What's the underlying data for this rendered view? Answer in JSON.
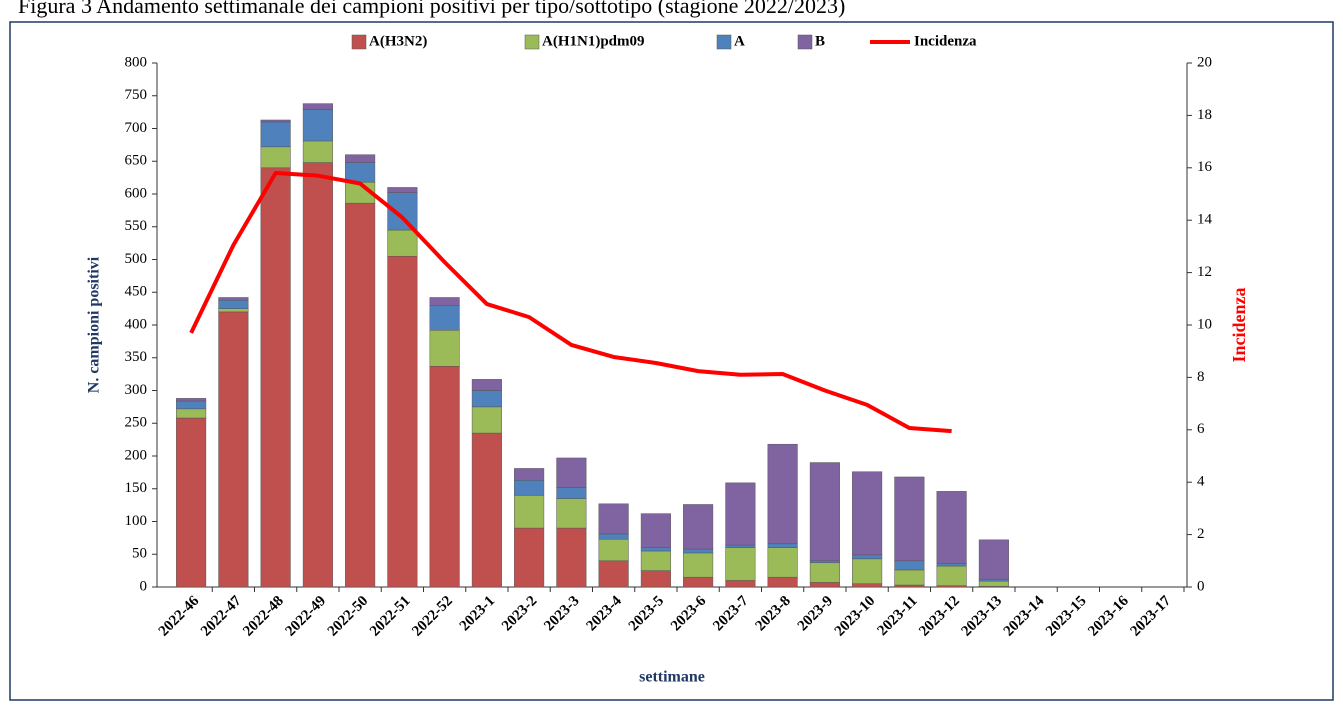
{
  "chart_data": {
    "type": "bar",
    "title": "Figura 3 Andamento settimanale dei campioni positivi per tipo/sottotipo (stagione 2022/2023)",
    "x_label": "settimane",
    "y_label": "N. campioni positivi",
    "y2_label": "Incidenza",
    "stacked": true,
    "legend": "top",
    "categories": [
      "2022-46",
      "2022-47",
      "2022-48",
      "2022-49",
      "2022-50",
      "2022-51",
      "2022-52",
      "2023-1",
      "2023-2",
      "2023-3",
      "2023-4",
      "2023-5",
      "2023-6",
      "2023-7",
      "2023-8",
      "2023-9",
      "2023-10",
      "2023-11",
      "2023-12",
      "2023-13",
      "2023-14",
      "2023-15",
      "2023-16",
      "2023-17"
    ],
    "series": [
      {
        "name": "A(H3N2)",
        "color": "#c0504d",
        "values": [
          258,
          420,
          640,
          648,
          586,
          505,
          337,
          235,
          90,
          90,
          40,
          25,
          15,
          10,
          15,
          7,
          5,
          3,
          2,
          1,
          null,
          null,
          null,
          null
        ]
      },
      {
        "name": "A(H1N1)pdm09",
        "color": "#9bbb59",
        "values": [
          14,
          5,
          32,
          33,
          32,
          40,
          55,
          40,
          50,
          45,
          33,
          30,
          37,
          50,
          45,
          30,
          38,
          23,
          30,
          8,
          null,
          null,
          null,
          null
        ]
      },
      {
        "name": "A",
        "color": "#4f81bd",
        "values": [
          12,
          13,
          38,
          48,
          30,
          57,
          38,
          25,
          23,
          17,
          8,
          5,
          6,
          4,
          6,
          3,
          6,
          14,
          4,
          3,
          null,
          null,
          null,
          null
        ]
      },
      {
        "name": "B",
        "color": "#8064a2",
        "values": [
          4,
          4,
          3,
          9,
          12,
          8,
          12,
          17,
          18,
          45,
          46,
          52,
          68,
          95,
          152,
          150,
          127,
          128,
          110,
          60,
          null,
          null,
          null,
          null
        ]
      },
      {
        "name": "Incidenza",
        "color": "#ff0000",
        "type": "line",
        "axis": "y2",
        "values": [
          9.7,
          13.05,
          15.8,
          15.7,
          15.4,
          14.1,
          12.4,
          10.8,
          10.3,
          9.24,
          8.78,
          8.55,
          8.24,
          8.1,
          8.13,
          7.5,
          6.95,
          6.07,
          5.95,
          null,
          null,
          null,
          null,
          null
        ]
      }
    ],
    "ylim": [
      0,
      800
    ],
    "yticks": [
      0,
      50,
      100,
      150,
      200,
      250,
      300,
      350,
      400,
      450,
      500,
      550,
      600,
      650,
      700,
      750,
      800
    ],
    "y2lim": [
      0,
      20
    ],
    "y2ticks": [
      0,
      2,
      4,
      6,
      8,
      10,
      12,
      14,
      16,
      18,
      20
    ]
  }
}
